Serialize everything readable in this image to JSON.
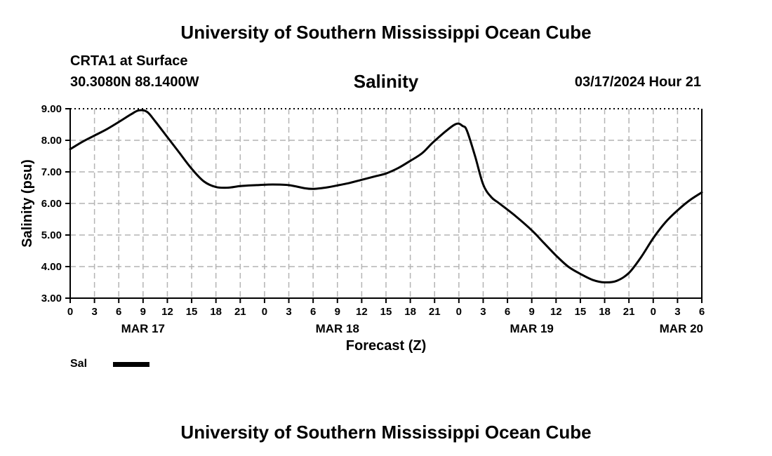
{
  "header": {
    "title": "University of Southern Mississippi Ocean Cube",
    "station": "CRTA1 at Surface",
    "coords": "30.3080N  88.1400W",
    "datetime": "03/17/2024 Hour 21"
  },
  "footer": {
    "title": "University of Southern Mississippi Ocean Cube"
  },
  "chart_data": {
    "type": "line",
    "title": "Salinity",
    "xlabel": "Forecast (Z)",
    "ylabel": "Salinity (psu)",
    "ylim": [
      3,
      9
    ],
    "yticks": [
      "3.00",
      "4.00",
      "5.00",
      "6.00",
      "7.00",
      "8.00",
      "9.00"
    ],
    "xlim": [
      0,
      78
    ],
    "xtick_labels": [
      "0",
      "3",
      "6",
      "9",
      "12",
      "15",
      "18",
      "21",
      "0",
      "3",
      "6",
      "9",
      "12",
      "15",
      "18",
      "21",
      "0",
      "3",
      "6",
      "9",
      "12",
      "15",
      "18",
      "21",
      "0",
      "3",
      "6"
    ],
    "date_labels": [
      {
        "hour": 9,
        "label": "MAR 17"
      },
      {
        "hour": 33,
        "label": "MAR 18"
      },
      {
        "hour": 57,
        "label": "MAR 19"
      },
      {
        "hour": 78,
        "label": "MAR 20"
      }
    ],
    "grid": true,
    "legend": {
      "placement": "bottom-left",
      "label": "Sal"
    },
    "series": [
      {
        "name": "Sal",
        "x": [
          0,
          1.5,
          3,
          4.5,
          6,
          7.5,
          8.5,
          9.5,
          10.5,
          12,
          13.5,
          15,
          16.5,
          18,
          19.5,
          21,
          23,
          25,
          27,
          29,
          30,
          31.5,
          33,
          34.5,
          36,
          37.5,
          39,
          40.5,
          42,
          43.5,
          45,
          47.5,
          48.5,
          49,
          50,
          51,
          52,
          53,
          55,
          57,
          58.5,
          60,
          61.5,
          63,
          64.5,
          66,
          67.5,
          69,
          70.5,
          72,
          73.5,
          75,
          76.5,
          78
        ],
        "values": [
          7.72,
          7.95,
          8.15,
          8.35,
          8.58,
          8.82,
          8.95,
          8.9,
          8.6,
          8.1,
          7.6,
          7.1,
          6.7,
          6.52,
          6.5,
          6.55,
          6.58,
          6.6,
          6.58,
          6.48,
          6.46,
          6.5,
          6.57,
          6.65,
          6.75,
          6.85,
          6.95,
          7.12,
          7.35,
          7.6,
          7.98,
          8.5,
          8.45,
          8.3,
          7.5,
          6.6,
          6.2,
          6.0,
          5.6,
          5.15,
          4.75,
          4.35,
          4.0,
          3.77,
          3.58,
          3.5,
          3.55,
          3.8,
          4.3,
          4.9,
          5.4,
          5.78,
          6.1,
          6.35
        ]
      }
    ]
  }
}
